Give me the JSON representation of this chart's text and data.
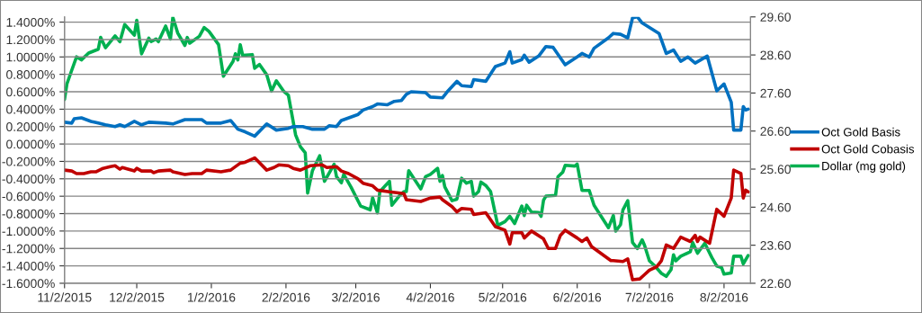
{
  "chart_data": {
    "type": "line",
    "legend": "right",
    "grid": "y",
    "marker": "none",
    "line_style": "solid",
    "xlim": [
      "2015-11-02",
      "2016-08-13"
    ],
    "xticks": [
      {
        "value": "2015-11-02",
        "label": "11/2/2015"
      },
      {
        "value": "2015-12-02",
        "label": "12/2/2015"
      },
      {
        "value": "2016-01-02",
        "label": "1/2/2016"
      },
      {
        "value": "2016-02-02",
        "label": "2/2/2016"
      },
      {
        "value": "2016-03-02",
        "label": "3/2/2016"
      },
      {
        "value": "2016-04-02",
        "label": "4/2/2016"
      },
      {
        "value": "2016-05-02",
        "label": "5/2/2016"
      },
      {
        "value": "2016-06-02",
        "label": "6/2/2016"
      },
      {
        "value": "2016-07-02",
        "label": "7/2/2016"
      },
      {
        "value": "2016-08-02",
        "label": "8/2/2016"
      }
    ],
    "ylim": [
      -1.6,
      1.46
    ],
    "yticks": [
      {
        "value": -1.6,
        "label": "-1.6000%"
      },
      {
        "value": -1.4,
        "label": "-1.4000%"
      },
      {
        "value": -1.2,
        "label": "-1.2000%"
      },
      {
        "value": -1.0,
        "label": "-1.0000%"
      },
      {
        "value": -0.8,
        "label": "-0.8000%"
      },
      {
        "value": -0.6,
        "label": "-0.6000%"
      },
      {
        "value": -0.4,
        "label": "-0.4000%"
      },
      {
        "value": -0.2,
        "label": "-0.2000%"
      },
      {
        "value": 0,
        "label": "0.0000%"
      },
      {
        "value": 0.2,
        "label": "0.2000%"
      },
      {
        "value": 0.4,
        "label": "0.4000%"
      },
      {
        "value": 0.6,
        "label": "0.6000%"
      },
      {
        "value": 0.8,
        "label": "0.8000%"
      },
      {
        "value": 1.0,
        "label": "1.0000%"
      },
      {
        "value": 1.2,
        "label": "1.2000%"
      },
      {
        "value": 1.4,
        "label": "1.4000%"
      }
    ],
    "y2lim": [
      22.6,
      29.6
    ],
    "y2ticks": [
      {
        "value": 22.6,
        "label": "22.60"
      },
      {
        "value": 23.6,
        "label": "23.60"
      },
      {
        "value": 24.6,
        "label": "24.60"
      },
      {
        "value": 25.6,
        "label": "25.60"
      },
      {
        "value": 26.6,
        "label": "26.60"
      },
      {
        "value": 27.6,
        "label": "27.60"
      },
      {
        "value": 28.6,
        "label": "28.60"
      },
      {
        "value": 29.6,
        "label": "29.60"
      }
    ],
    "series": [
      {
        "name": "Oct Gold Basis",
        "color": "#0070c0",
        "x": [
          "2015-11-02",
          "2015-11-05",
          "2015-11-06",
          "2015-11-09",
          "2015-11-13",
          "2015-11-16",
          "2015-11-19",
          "2015-11-23",
          "2015-11-25",
          "2015-11-27",
          "2015-12-01",
          "2015-12-04",
          "2015-12-07",
          "2015-12-14",
          "2015-12-17",
          "2015-12-22",
          "2015-12-29",
          "2015-12-31",
          "2016-01-06",
          "2016-01-10",
          "2016-01-13",
          "2016-01-16",
          "2016-01-20",
          "2016-01-25",
          "2016-01-29",
          "2016-02-03",
          "2016-02-05",
          "2016-02-09",
          "2016-02-13",
          "2016-02-18",
          "2016-02-20",
          "2016-02-23",
          "2016-02-25",
          "2016-03-03",
          "2016-03-05",
          "2016-03-09",
          "2016-03-11",
          "2016-03-15",
          "2016-03-18",
          "2016-03-21",
          "2016-03-23",
          "2016-03-25",
          "2016-03-31",
          "2016-04-02",
          "2016-04-07",
          "2016-04-09",
          "2016-04-13",
          "2016-04-15",
          "2016-04-19",
          "2016-04-20",
          "2016-04-25",
          "2016-04-29",
          "2016-05-03",
          "2016-05-05",
          "2016-05-06",
          "2016-05-10",
          "2016-05-11",
          "2016-05-13",
          "2016-05-17",
          "2016-05-20",
          "2016-05-23",
          "2016-05-28",
          "2016-06-02",
          "2016-06-04",
          "2016-06-07",
          "2016-06-09",
          "2016-06-15",
          "2016-06-17",
          "2016-06-20",
          "2016-06-23",
          "2016-06-25",
          "2016-06-27",
          "2016-06-29",
          "2016-07-06",
          "2016-07-09",
          "2016-07-12",
          "2016-07-15",
          "2016-07-18",
          "2016-07-21",
          "2016-07-26",
          "2016-07-30",
          "2016-08-02",
          "2016-08-05",
          "2016-08-06",
          "2016-08-09",
          "2016-08-10",
          "2016-08-11",
          "2016-08-12"
        ],
        "values": [
          0.25,
          0.24,
          0.29,
          0.3,
          0.26,
          0.24,
          0.22,
          0.2,
          0.22,
          0.2,
          0.26,
          0.22,
          0.25,
          0.24,
          0.23,
          0.28,
          0.28,
          0.24,
          0.24,
          0.27,
          0.17,
          0.14,
          0.09,
          0.23,
          0.16,
          0.18,
          0.2,
          0.2,
          0.17,
          0.17,
          0.21,
          0.2,
          0.27,
          0.34,
          0.39,
          0.43,
          0.46,
          0.45,
          0.49,
          0.5,
          0.57,
          0.6,
          0.59,
          0.54,
          0.53,
          0.6,
          0.72,
          0.67,
          0.66,
          0.74,
          0.72,
          0.89,
          0.93,
          1.06,
          0.93,
          0.97,
          1.02,
          0.94,
          1.01,
          1.12,
          1.11,
          0.91,
          1.0,
          1.04,
          1.0,
          1.1,
          1.22,
          1.27,
          1.26,
          1.22,
          1.45,
          1.46,
          1.39,
          1.27,
          1.04,
          1.08,
          0.95,
          1.0,
          0.93,
          1.01,
          0.61,
          0.69,
          0.48,
          0.16,
          0.16,
          0.43,
          0.39,
          0.4
        ]
      },
      {
        "name": "Oct Gold Cobasis",
        "color": "#c00000",
        "x": [
          "2015-11-02",
          "2015-11-05",
          "2015-11-07",
          "2015-11-10",
          "2015-11-13",
          "2015-11-15",
          "2015-11-18",
          "2015-11-21",
          "2015-11-23",
          "2015-11-25",
          "2015-11-26",
          "2015-12-01",
          "2015-12-02",
          "2015-12-04",
          "2015-12-08",
          "2015-12-09",
          "2015-12-11",
          "2015-12-16",
          "2015-12-17",
          "2015-12-22",
          "2015-12-25",
          "2015-12-29",
          "2015-12-31",
          "2016-01-06",
          "2016-01-10",
          "2016-01-14",
          "2016-01-16",
          "2016-01-20",
          "2016-01-25",
          "2016-01-28",
          "2016-01-30",
          "2016-02-03",
          "2016-02-05",
          "2016-02-08",
          "2016-02-12",
          "2016-02-17",
          "2016-02-19",
          "2016-02-23",
          "2016-02-25",
          "2016-02-28",
          "2016-03-03",
          "2016-03-05",
          "2016-03-09",
          "2016-03-11",
          "2016-03-16",
          "2016-03-22",
          "2016-03-23",
          "2016-03-29",
          "2016-04-02",
          "2016-04-06",
          "2016-04-07",
          "2016-04-11",
          "2016-04-13",
          "2016-04-15",
          "2016-04-19",
          "2016-04-20",
          "2016-04-25",
          "2016-04-29",
          "2016-05-03",
          "2016-05-05",
          "2016-05-06",
          "2016-05-10",
          "2016-05-11",
          "2016-05-14",
          "2016-05-19",
          "2016-05-21",
          "2016-05-24",
          "2016-05-26",
          "2016-05-28",
          "2016-06-02",
          "2016-06-04",
          "2016-06-06",
          "2016-06-08",
          "2016-06-16",
          "2016-06-17",
          "2016-06-21",
          "2016-06-23",
          "2016-06-25",
          "2016-06-28",
          "2016-06-30",
          "2016-07-02",
          "2016-07-05",
          "2016-07-07",
          "2016-07-09",
          "2016-07-12",
          "2016-07-15",
          "2016-07-19",
          "2016-07-21",
          "2016-07-22",
          "2016-07-23",
          "2016-07-27",
          "2016-07-30",
          "2016-08-02",
          "2016-08-05",
          "2016-08-06",
          "2016-08-09",
          "2016-08-10",
          "2016-08-11",
          "2016-08-12"
        ],
        "values": [
          -0.3,
          -0.31,
          -0.34,
          -0.34,
          -0.32,
          -0.32,
          -0.28,
          -0.26,
          -0.25,
          -0.29,
          -0.27,
          -0.31,
          -0.28,
          -0.31,
          -0.31,
          -0.33,
          -0.31,
          -0.3,
          -0.32,
          -0.35,
          -0.34,
          -0.34,
          -0.3,
          -0.32,
          -0.3,
          -0.22,
          -0.21,
          -0.16,
          -0.3,
          -0.27,
          -0.24,
          -0.25,
          -0.28,
          -0.3,
          -0.25,
          -0.24,
          -0.27,
          -0.26,
          -0.31,
          -0.34,
          -0.4,
          -0.45,
          -0.48,
          -0.53,
          -0.55,
          -0.57,
          -0.64,
          -0.66,
          -0.62,
          -0.61,
          -0.64,
          -0.72,
          -0.78,
          -0.74,
          -0.75,
          -0.81,
          -0.79,
          -0.95,
          -0.99,
          -1.15,
          -1.02,
          -1.02,
          -1.08,
          -1.0,
          -1.09,
          -1.2,
          -1.2,
          -1.05,
          -0.99,
          -1.08,
          -1.12,
          -1.08,
          -1.18,
          -1.34,
          -1.34,
          -1.35,
          -1.32,
          -1.56,
          -1.55,
          -1.5,
          -1.45,
          -1.41,
          -1.34,
          -1.16,
          -1.2,
          -1.07,
          -1.12,
          -1.05,
          -1.12,
          -1.07,
          -1.14,
          -0.75,
          -0.83,
          -0.62,
          -0.3,
          -0.34,
          -0.62,
          -0.53,
          -0.55
        ]
      },
      {
        "name": "Dollar (mg gold)",
        "color": "#00b050",
        "axis": "y2",
        "x": [
          "2015-11-02",
          "2015-11-03",
          "2015-11-05",
          "2015-11-07",
          "2015-11-09",
          "2015-11-12",
          "2015-11-16",
          "2015-11-17",
          "2015-11-19",
          "2015-11-23",
          "2015-11-25",
          "2015-11-27",
          "2015-12-01",
          "2015-12-02",
          "2015-12-04",
          "2015-12-07",
          "2015-12-08",
          "2015-12-10",
          "2015-12-11",
          "2015-12-14",
          "2015-12-16",
          "2015-12-17",
          "2015-12-19",
          "2015-12-22",
          "2015-12-23",
          "2015-12-24",
          "2015-12-28",
          "2015-12-30",
          "2016-01-01",
          "2016-01-05",
          "2016-01-07",
          "2016-01-11",
          "2016-01-12",
          "2016-01-13",
          "2016-01-14",
          "2016-01-15",
          "2016-01-19",
          "2016-01-20",
          "2016-01-22",
          "2016-01-25",
          "2016-01-27",
          "2016-01-29",
          "2016-02-01",
          "2016-02-03",
          "2016-02-06",
          "2016-02-08",
          "2016-02-10",
          "2016-02-11",
          "2016-02-13",
          "2016-02-16",
          "2016-02-18",
          "2016-02-22",
          "2016-02-23",
          "2016-02-25",
          "2016-02-26",
          "2016-02-29",
          "2016-03-04",
          "2016-03-08",
          "2016-03-09",
          "2016-03-11",
          "2016-03-12",
          "2016-03-16",
          "2016-03-17",
          "2016-03-20",
          "2016-03-22",
          "2016-03-23",
          "2016-03-24",
          "2016-03-29",
          "2016-03-31",
          "2016-04-02",
          "2016-04-05",
          "2016-04-06",
          "2016-04-07",
          "2016-04-08",
          "2016-04-11",
          "2016-04-13",
          "2016-04-15",
          "2016-04-17",
          "2016-04-19",
          "2016-04-20",
          "2016-04-22",
          "2016-04-23",
          "2016-04-25",
          "2016-04-27",
          "2016-04-30",
          "2016-05-03",
          "2016-05-05",
          "2016-05-07",
          "2016-05-10",
          "2016-05-11",
          "2016-05-12",
          "2016-05-14",
          "2016-05-17",
          "2016-05-18",
          "2016-05-19",
          "2016-05-20",
          "2016-05-24",
          "2016-05-25",
          "2016-05-27",
          "2016-05-28",
          "2016-06-01",
          "2016-06-02",
          "2016-06-04",
          "2016-06-07",
          "2016-06-09",
          "2016-06-15",
          "2016-06-17",
          "2016-06-18",
          "2016-06-20",
          "2016-06-21",
          "2016-06-23",
          "2016-06-25",
          "2016-06-27",
          "2016-06-29",
          "2016-06-30",
          "2016-07-02",
          "2016-07-04",
          "2016-07-07",
          "2016-07-09",
          "2016-07-11",
          "2016-07-12",
          "2016-07-13",
          "2016-07-15",
          "2016-07-19",
          "2016-07-20",
          "2016-07-22",
          "2016-07-25",
          "2016-07-28",
          "2016-07-30",
          "2016-08-01",
          "2016-08-02",
          "2016-08-05",
          "2016-08-06",
          "2016-08-09",
          "2016-08-10",
          "2016-08-12"
        ],
        "values": [
          27.43,
          27.84,
          28.2,
          28.55,
          28.47,
          28.65,
          28.75,
          29.06,
          28.79,
          29.1,
          28.95,
          29.4,
          29.12,
          29.51,
          28.63,
          29.04,
          28.95,
          29.02,
          28.95,
          29.36,
          29.02,
          29.59,
          29.18,
          28.85,
          29.06,
          28.91,
          29.09,
          29.32,
          29.22,
          28.87,
          28.04,
          28.43,
          28.63,
          28.47,
          28.87,
          28.59,
          28.61,
          28.25,
          28.35,
          28.08,
          27.65,
          27.92,
          27.65,
          27.54,
          26.5,
          26.19,
          26.03,
          24.97,
          25.56,
          25.95,
          25.28,
          25.73,
          25.4,
          25.24,
          25.46,
          25.13,
          24.63,
          24.53,
          24.85,
          24.45,
          25.01,
          25.28,
          24.65,
          24.89,
          25.01,
          25.01,
          25.56,
          25.08,
          25.4,
          25.46,
          25.62,
          25.28,
          25.43,
          25.13,
          24.77,
          24.81,
          25.36,
          25.23,
          25.28,
          24.89,
          25.01,
          25.26,
          25.17,
          25.01,
          24.12,
          24.22,
          24.36,
          24.17,
          24.63,
          24.38,
          24.65,
          24.47,
          24.46,
          24.36,
          24.78,
          24.89,
          24.91,
          25.4,
          25.52,
          25.7,
          25.68,
          25.73,
          25.04,
          25.04,
          24.65,
          24.06,
          24.38,
          23.97,
          24.14,
          24.53,
          24.77,
          23.67,
          23.51,
          23.74,
          23.59,
          23.19,
          23.07,
          22.86,
          22.78,
          22.96,
          23.35,
          23.19,
          23.31,
          23.43,
          23.67,
          23.39,
          23.65,
          23.27,
          23.05,
          23.01,
          22.84,
          22.87,
          23.31,
          23.31,
          23.11,
          23.33
        ]
      }
    ]
  }
}
